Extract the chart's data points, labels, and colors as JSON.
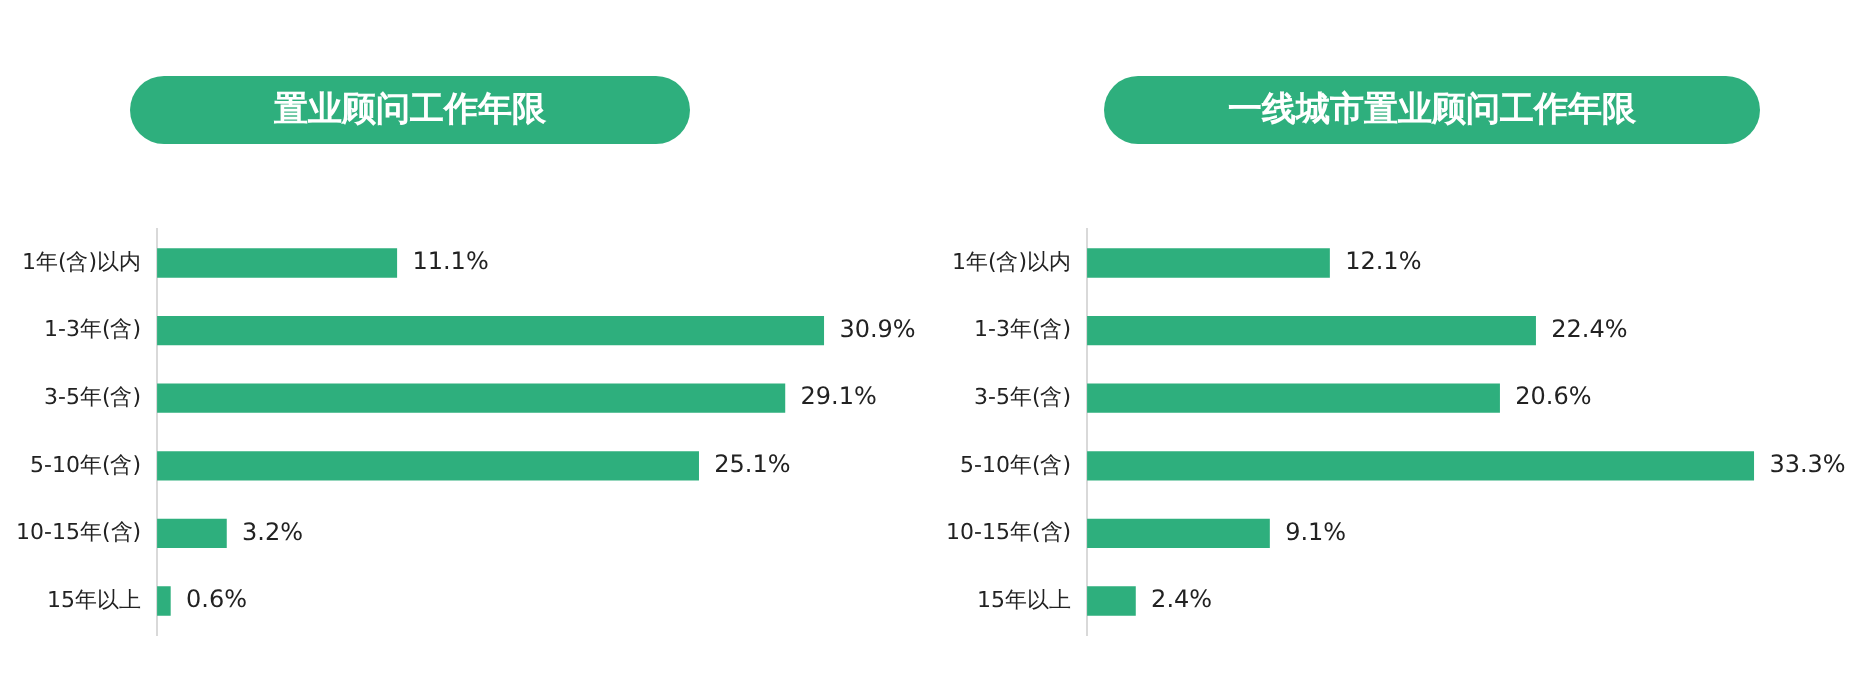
{
  "chart_data": [
    {
      "type": "bar",
      "orientation": "horizontal",
      "title": "置业顾问工作年限",
      "categories": [
        "1年(含)以内",
        "1-3年(含)",
        "3-5年(含)",
        "5-10年(含)",
        "10-15年(含)",
        "15年以上"
      ],
      "values": [
        11.1,
        30.9,
        29.1,
        25.1,
        3.2,
        0.6
      ],
      "value_labels": [
        "11.1%",
        "30.9%",
        "29.1%",
        "25.1%",
        "3.2%",
        "0.6%"
      ],
      "color": "#2eaf7d",
      "legend": false
    },
    {
      "type": "bar",
      "orientation": "horizontal",
      "title": "一线城市置业顾问工作年限",
      "categories": [
        "1年(含)以内",
        "1-3年(含)",
        "3-5年(含)",
        "5-10年(含)",
        "10-15年(含)",
        "15年以上"
      ],
      "values": [
        12.1,
        22.4,
        20.6,
        33.3,
        9.1,
        2.4
      ],
      "value_labels": [
        "12.1%",
        "22.4%",
        "20.6%",
        "33.3%",
        "9.1%",
        "2.4%"
      ],
      "color": "#2eaf7d",
      "legend": false
    }
  ]
}
